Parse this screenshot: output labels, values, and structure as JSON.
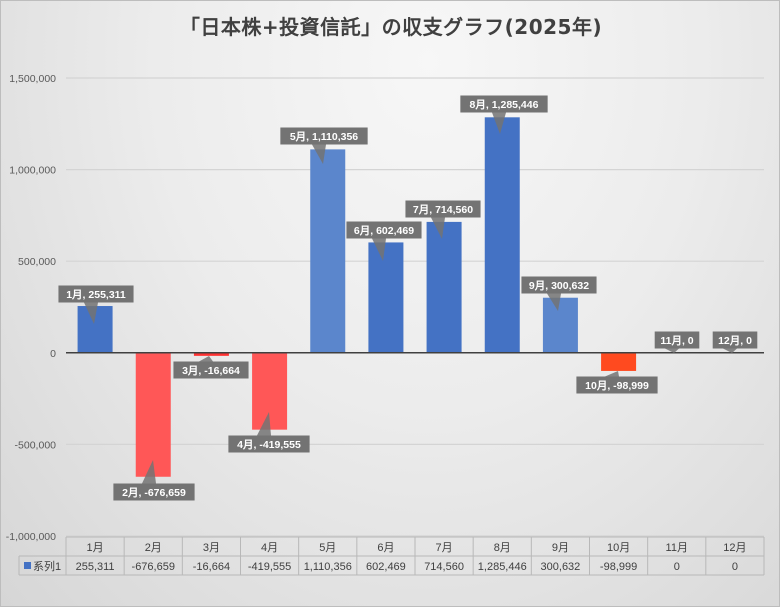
{
  "chart_data": {
    "type": "bar",
    "title": "「日本株+投資信託」の収支グラフ(2025年)",
    "categories": [
      "1月",
      "2月",
      "3月",
      "4月",
      "5月",
      "6月",
      "7月",
      "8月",
      "9月",
      "10月",
      "11月",
      "12月"
    ],
    "series": [
      {
        "name": "系列1",
        "values": [
          255311,
          -676659,
          -16664,
          -419555,
          1110356,
          602469,
          714560,
          1285446,
          300632,
          -98999,
          0,
          0
        ]
      }
    ],
    "data_labels": [
      "1月, 255,311",
      "2月, -676,659",
      "3月, -16,664",
      "4月, -419,555",
      "5月, 1,110,356",
      "6月, 602,469",
      "7月, 714,560",
      "8月, 1,285,446",
      "9月, 300,632",
      "10月, -98,999",
      "11月, 0",
      "12月, 0"
    ],
    "table_values": [
      "255,311",
      "-676,659",
      "-16,664",
      "-419,555",
      "1,110,356",
      "602,469",
      "714,560",
      "1,285,446",
      "300,632",
      "-98,999",
      "0",
      "0"
    ],
    "yticks": [
      1500000,
      1000000,
      500000,
      0,
      -500000,
      -1000000
    ],
    "ytick_labels": [
      "1,500,000",
      "1,000,000",
      "500,000",
      "0",
      "-500,000",
      "-1,000,000"
    ],
    "ylim": [
      -1000000,
      1500000
    ],
    "xlabel": "",
    "ylabel": "",
    "grid": true,
    "legend": "data-table",
    "colors": {
      "positive": "#4472c4",
      "positive_light": "#5b86cc",
      "negative": "#ff5757",
      "negative_dark": "#ff4a1f",
      "label_bg": "#737373",
      "grid": "#d4d4d4",
      "axis": "#404040"
    }
  }
}
